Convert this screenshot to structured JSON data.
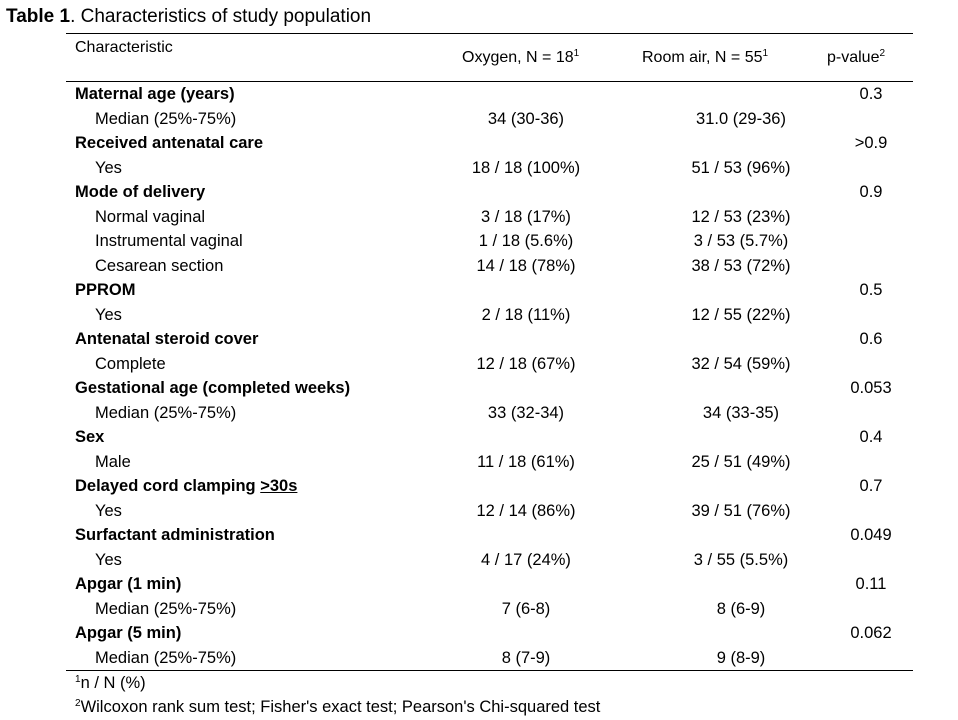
{
  "caption": {
    "label": "Table 1",
    "text": ". Characteristics of study population"
  },
  "header": {
    "characteristic": "Characteristic",
    "oxygen": "Oxygen, N = 18",
    "room_air": "Room air, N = 55",
    "pvalue": "p-value",
    "sup1": "1",
    "sup2": "2"
  },
  "rows": [
    {
      "label": "Maternal age (years)",
      "bold": true,
      "p": "0.3"
    },
    {
      "label": "Median (25%-75%)",
      "oxygen": "34 (30-36)",
      "room_air": "31.0 (29-36)"
    },
    {
      "label": "Received antenatal care",
      "bold": true,
      "p": ">0.9"
    },
    {
      "label": "Yes",
      "oxygen": "18 / 18 (100%)",
      "room_air": "51 / 53 (96%)"
    },
    {
      "label": "Mode of delivery",
      "bold": true,
      "p": "0.9"
    },
    {
      "label": "Normal vaginal",
      "oxygen": "3 / 18 (17%)",
      "room_air": "12 / 53 (23%)"
    },
    {
      "label": "Instrumental vaginal",
      "oxygen": "1 / 18 (5.6%)",
      "room_air": "3 / 53 (5.7%)"
    },
    {
      "label": "Cesarean section",
      "oxygen": "14 / 18 (78%)",
      "room_air": "38 / 53 (72%)"
    },
    {
      "label": "PPROM",
      "bold": true,
      "p": "0.5"
    },
    {
      "label": "Yes",
      "oxygen": "2 / 18 (11%)",
      "room_air": "12 / 55 (22%)"
    },
    {
      "label": "Antenatal steroid cover",
      "bold": true,
      "p": "0.6"
    },
    {
      "label": "Complete",
      "oxygen": "12 / 18 (67%)",
      "room_air": "32 / 54 (59%)"
    },
    {
      "label": "Gestational age (completed weeks)",
      "bold": true,
      "p": "0.053"
    },
    {
      "label": "Median (25%-75%)",
      "oxygen": "33 (32-34)",
      "room_air": "34 (33-35)"
    },
    {
      "label": "Sex",
      "bold": true,
      "p": "0.4"
    },
    {
      "label": "Male",
      "oxygen": "11 / 18 (61%)",
      "room_air": "25 / 51 (49%)"
    },
    {
      "label": "Delayed cord clamping ",
      "label_underlined": ">30s",
      "bold": true,
      "p": "0.7"
    },
    {
      "label": "Yes",
      "oxygen": "12 / 14 (86%)",
      "room_air": "39 / 51 (76%)"
    },
    {
      "label": "Surfactant administration",
      "bold": true,
      "p": "0.049"
    },
    {
      "label": "Yes",
      "oxygen": "4 / 17 (24%)",
      "room_air": "3 / 55 (5.5%)"
    },
    {
      "label": "Apgar (1 min)",
      "bold": true,
      "p": "0.11"
    },
    {
      "label": "Median (25%-75%)",
      "oxygen": "7 (6-8)",
      "room_air": "8 (6-9)"
    },
    {
      "label": "Apgar (5 min)",
      "bold": true,
      "p": "0.062"
    },
    {
      "label": "Median (25%-75%)",
      "oxygen": "8 (7-9)",
      "room_air": "9 (8-9)"
    }
  ],
  "footnotes": [
    {
      "sup": "1",
      "text": "n / N (%)"
    },
    {
      "sup": "2",
      "text": "Wilcoxon rank sum test; Fisher's exact test; Pearson's Chi-squared test"
    }
  ]
}
